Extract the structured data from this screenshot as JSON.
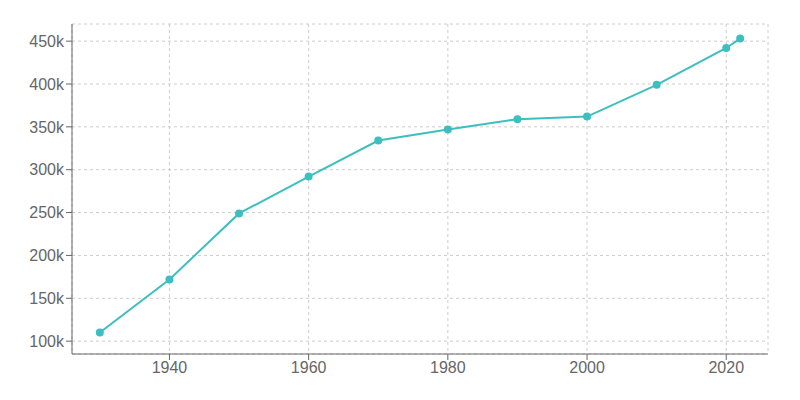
{
  "chart_data": {
    "type": "line",
    "x": [
      1930,
      1940,
      1950,
      1960,
      1970,
      1980,
      1990,
      2000,
      2010,
      2020,
      2022
    ],
    "values": [
      110000,
      172000,
      249000,
      292000,
      334000,
      347000,
      359000,
      362000,
      399000,
      442000,
      453000
    ],
    "color": "#3dbfbf",
    "marker": "circle",
    "xlim": [
      1926,
      2026
    ],
    "xticks": [
      1940,
      1960,
      1980,
      2000,
      2020
    ],
    "ylim": [
      85000,
      470000
    ],
    "yticks": [
      {
        "value": 100000,
        "label": "100k"
      },
      {
        "value": 150000,
        "label": "150k"
      },
      {
        "value": 200000,
        "label": "200k"
      },
      {
        "value": 250000,
        "label": "250k"
      },
      {
        "value": 300000,
        "label": "300k"
      },
      {
        "value": 350000,
        "label": "350k"
      },
      {
        "value": 400000,
        "label": "400k"
      },
      {
        "value": 450000,
        "label": "450k"
      }
    ],
    "grid": true
  }
}
